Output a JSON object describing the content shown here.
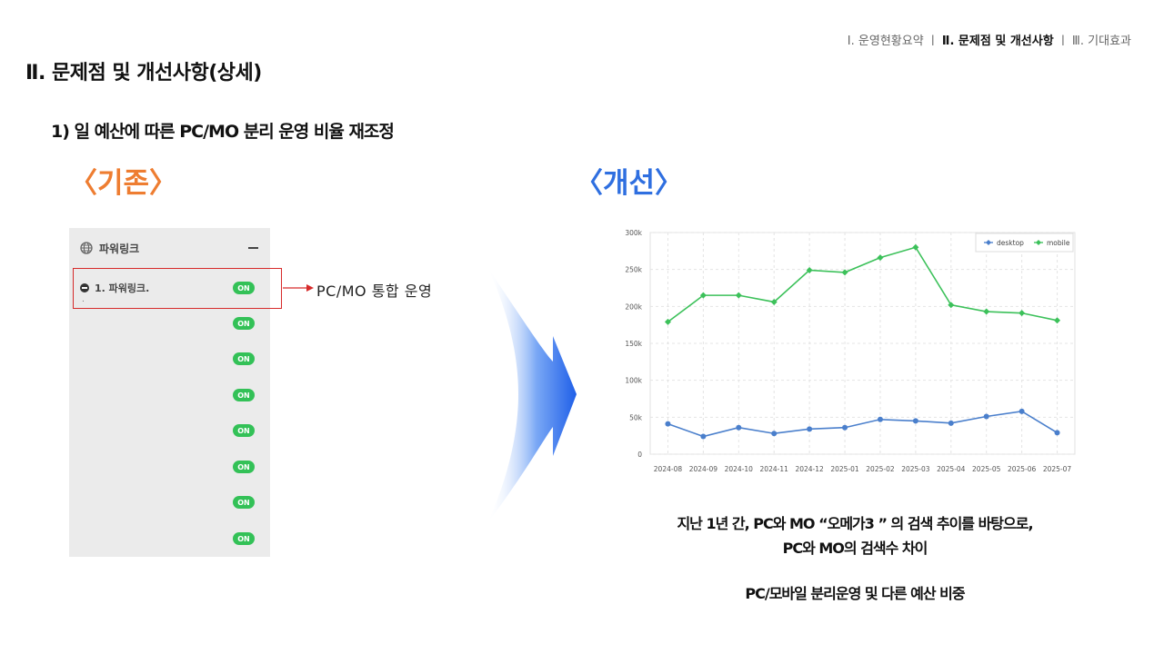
{
  "nav": {
    "item1": "Ⅰ. 운영현황요약",
    "sep1": "ㅣ",
    "item2": "Ⅱ. 문제점 및 개선사항",
    "sep2": "ㅣ",
    "item3": "Ⅲ. 기대효과"
  },
  "page_title": "Ⅱ. 문제점 및 개선사항(상세)",
  "section_heading": "1) 일 예산에 따른 PC/MO 분리 운영 비율 재조정",
  "before_label": "〈기존〉",
  "after_label": "〈개선〉",
  "panel": {
    "header": "파워링크",
    "row1_label": "1. 파워링크.",
    "row1_sub": ".",
    "toggle_label": "ON",
    "toggle_count": 8
  },
  "callout": "PC/MO 통합 운영",
  "colors": {
    "desktop": "#4a7fcc",
    "mobile": "#3cc15a",
    "before_accent": "#ee7d31",
    "after_accent": "#2f6fe0",
    "highlight": "#d62a2a",
    "toggle_on": "#33c157"
  },
  "chart_data": {
    "type": "line",
    "x": [
      "2024-08",
      "2024-09",
      "2024-10",
      "2024-11",
      "2024-12",
      "2025-01",
      "2025-02",
      "2025-03",
      "2025-04",
      "2025-05",
      "2025-06",
      "2025-07"
    ],
    "series": [
      {
        "name": "desktop",
        "values": [
          41000,
          24000,
          36000,
          28000,
          34000,
          36000,
          47000,
          45000,
          42000,
          51000,
          58000,
          29000
        ]
      },
      {
        "name": "mobile",
        "values": [
          179000,
          215000,
          215000,
          206000,
          249000,
          246000,
          266000,
          280000,
          202000,
          193000,
          191000,
          181000
        ]
      }
    ],
    "yticks": [
      "0",
      "50k",
      "100k",
      "150k",
      "200k",
      "250k",
      "300k"
    ],
    "ylim": [
      0,
      300000
    ],
    "legend": "top-right",
    "grid": true
  },
  "caption": {
    "line1": "지난 1년 간, PC와 MO “오메가3 ” 의 검색 추이를 바탕으로,",
    "line2": "PC와 MO의 검색수 차이",
    "line3": "PC/모바일 분리운영 및 다른 예산 비중"
  }
}
